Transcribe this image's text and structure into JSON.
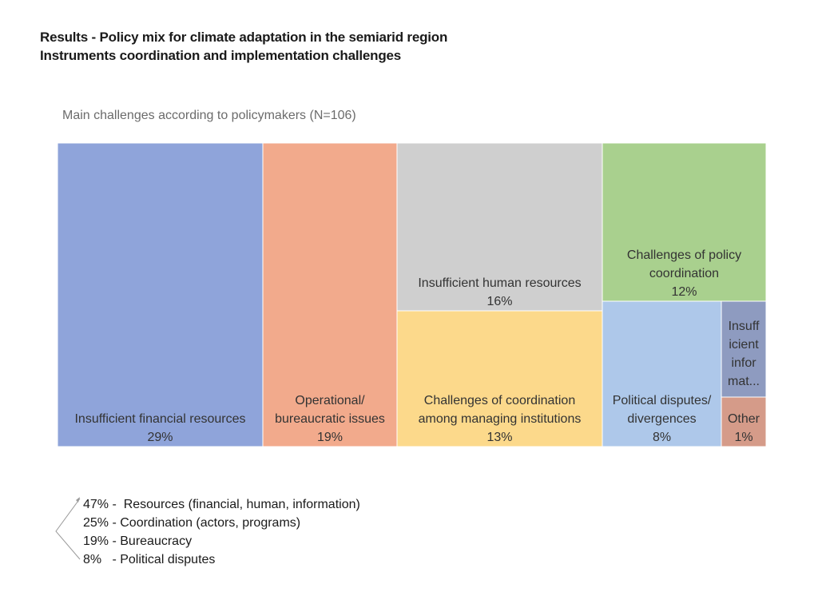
{
  "header": {
    "title": "Results - Policy mix for climate adaptation in the semiarid region",
    "subtitle": "Instruments coordination and implementation challenges"
  },
  "chart_data": {
    "type": "treemap",
    "title": "Main challenges according to policymakers (N=106)",
    "items": [
      {
        "lines": [
          "Insufficient financial resources",
          "29%"
        ],
        "value": 29,
        "color": "#8fa4da"
      },
      {
        "lines": [
          "Operational/",
          "bureaucratic issues",
          "19%"
        ],
        "value": 19,
        "color": "#f2aa8c"
      },
      {
        "lines": [
          "Insufficient human resources",
          "16%"
        ],
        "value": 16,
        "color": "#cfcfcf"
      },
      {
        "lines": [
          "Challenges of coordination",
          "among managing institutions",
          "13%"
        ],
        "value": 13,
        "color": "#fcd98b"
      },
      {
        "lines": [
          "Challenges of policy",
          "coordination",
          "12%"
        ],
        "value": 12,
        "color": "#a9d08e"
      },
      {
        "lines": [
          "Political disputes/",
          "divergences",
          "8%"
        ],
        "value": 8,
        "color": "#aec8ea"
      },
      {
        "lines": [
          "Insuff",
          "icient",
          "infor",
          "mat..."
        ],
        "value": 2,
        "color": "#8e9bc0"
      },
      {
        "lines": [
          "Other",
          "1%"
        ],
        "value": 1,
        "color": "#d59b89"
      }
    ]
  },
  "notes": [
    "47% -  Resources (financial, human, information)",
    "25% - Coordination (actors, programs)",
    "19% - Bureaucracy",
    "8%   - Political disputes"
  ]
}
